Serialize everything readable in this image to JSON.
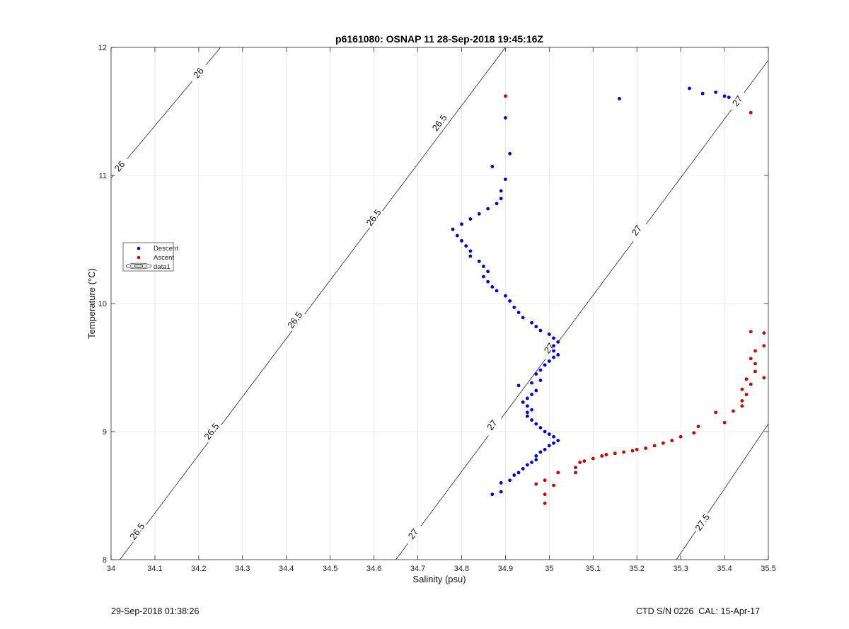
{
  "chart_data": {
    "type": "scatter",
    "title": "p6161080: OSNAP 11 28-Sep-2018 19:45:16Z",
    "xlabel": "Salinity (psu)",
    "ylabel": "Temperature (°C)",
    "xlim": [
      34,
      35.5
    ],
    "ylim": [
      8,
      12
    ],
    "xticks": [
      34,
      34.1,
      34.2,
      34.3,
      34.4,
      34.5,
      34.6,
      34.7,
      34.8,
      34.9,
      35,
      35.1,
      35.2,
      35.3,
      35.4,
      35.5
    ],
    "xtick_labels": [
      "34",
      "34.1",
      "34.2",
      "34.3",
      "34.4",
      "34.5",
      "34.6",
      "34.7",
      "34.8",
      "34.9",
      "35",
      "35.1",
      "35.2",
      "35.3",
      "35.4",
      "35.5"
    ],
    "yticks": [
      8,
      9,
      10,
      11,
      12
    ],
    "ytick_labels": [
      "8",
      "9",
      "10",
      "11",
      "12"
    ],
    "grid": true,
    "legend": {
      "location": "west",
      "entries": [
        "Descent",
        "Ascent",
        "data1"
      ]
    },
    "series": [
      {
        "name": "Descent",
        "color": "#0000cc",
        "points": [
          [
            34.87,
            8.51
          ],
          [
            34.89,
            8.53
          ],
          [
            34.89,
            8.6
          ],
          [
            34.91,
            8.62
          ],
          [
            34.92,
            8.66
          ],
          [
            34.93,
            8.68
          ],
          [
            34.94,
            8.71
          ],
          [
            34.95,
            8.74
          ],
          [
            34.96,
            8.76
          ],
          [
            34.97,
            8.78
          ],
          [
            34.97,
            8.81
          ],
          [
            34.98,
            8.84
          ],
          [
            34.99,
            8.86
          ],
          [
            35,
            8.89
          ],
          [
            35.01,
            8.91
          ],
          [
            35.02,
            8.93
          ],
          [
            35.01,
            8.96
          ],
          [
            35,
            8.98
          ],
          [
            34.99,
            9.0
          ],
          [
            34.98,
            9.03
          ],
          [
            34.97,
            9.06
          ],
          [
            34.96,
            9.09
          ],
          [
            34.95,
            9.12
          ],
          [
            34.95,
            9.15
          ],
          [
            34.96,
            9.17
          ],
          [
            34.95,
            9.2
          ],
          [
            34.94,
            9.23
          ],
          [
            34.95,
            9.26
          ],
          [
            34.96,
            9.29
          ],
          [
            34.97,
            9.32
          ],
          [
            34.93,
            9.36
          ],
          [
            34.96,
            9.38
          ],
          [
            34.98,
            9.4
          ],
          [
            34.97,
            9.45
          ],
          [
            34.98,
            9.48
          ],
          [
            34.99,
            9.52
          ],
          [
            35.0,
            9.55
          ],
          [
            35.01,
            9.58
          ],
          [
            35.02,
            9.6
          ],
          [
            35.01,
            9.63
          ],
          [
            35.01,
            9.67
          ],
          [
            35.02,
            9.7
          ],
          [
            35.01,
            9.73
          ],
          [
            35.0,
            9.76
          ],
          [
            34.98,
            9.79
          ],
          [
            34.97,
            9.82
          ],
          [
            34.96,
            9.85
          ],
          [
            34.94,
            9.89
          ],
          [
            34.93,
            9.93
          ],
          [
            34.92,
            9.97
          ],
          [
            34.91,
            10.02
          ],
          [
            34.9,
            10.06
          ],
          [
            34.88,
            10.1
          ],
          [
            34.87,
            10.13
          ],
          [
            34.86,
            10.17
          ],
          [
            34.85,
            10.21
          ],
          [
            34.86,
            10.25
          ],
          [
            34.85,
            10.29
          ],
          [
            34.84,
            10.33
          ],
          [
            34.82,
            10.37
          ],
          [
            34.82,
            10.41
          ],
          [
            34.81,
            10.45
          ],
          [
            34.8,
            10.49
          ],
          [
            34.79,
            10.53
          ],
          [
            34.78,
            10.58
          ],
          [
            34.8,
            10.62
          ],
          [
            34.82,
            10.66
          ],
          [
            34.84,
            10.7
          ],
          [
            34.86,
            10.74
          ],
          [
            34.88,
            10.78
          ],
          [
            34.89,
            10.82
          ],
          [
            34.89,
            10.88
          ],
          [
            34.9,
            10.97
          ],
          [
            34.87,
            11.07
          ],
          [
            34.91,
            11.17
          ],
          [
            34.9,
            11.45
          ],
          [
            35.16,
            11.6
          ],
          [
            35.32,
            11.68
          ],
          [
            35.35,
            11.64
          ],
          [
            35.38,
            11.65
          ],
          [
            35.4,
            11.62
          ],
          [
            35.41,
            11.61
          ]
        ]
      },
      {
        "name": "Ascent",
        "color": "#cc0000",
        "points": [
          [
            34.99,
            8.44
          ],
          [
            34.99,
            8.51
          ],
          [
            35.01,
            8.58
          ],
          [
            34.97,
            8.59
          ],
          [
            34.99,
            8.62
          ],
          [
            35.02,
            8.68
          ],
          [
            35.06,
            8.68
          ],
          [
            35.06,
            8.72
          ],
          [
            35.07,
            8.76
          ],
          [
            35.08,
            8.77
          ],
          [
            35.1,
            8.79
          ],
          [
            35.12,
            8.81
          ],
          [
            35.13,
            8.82
          ],
          [
            35.15,
            8.83
          ],
          [
            35.17,
            8.84
          ],
          [
            35.19,
            8.85
          ],
          [
            35.2,
            8.86
          ],
          [
            35.22,
            8.87
          ],
          [
            35.24,
            8.89
          ],
          [
            35.26,
            8.91
          ],
          [
            35.28,
            8.93
          ],
          [
            35.3,
            8.96
          ],
          [
            35.33,
            8.99
          ],
          [
            35.34,
            9.04
          ],
          [
            35.4,
            9.07
          ],
          [
            35.38,
            9.15
          ],
          [
            35.42,
            9.16
          ],
          [
            35.44,
            9.2
          ],
          [
            35.44,
            9.24
          ],
          [
            35.45,
            9.29
          ],
          [
            35.44,
            9.33
          ],
          [
            35.46,
            9.37
          ],
          [
            35.45,
            9.41
          ],
          [
            35.49,
            9.42
          ],
          [
            35.47,
            9.47
          ],
          [
            35.47,
            9.53
          ],
          [
            35.46,
            9.57
          ],
          [
            35.47,
            9.63
          ],
          [
            35.49,
            9.67
          ],
          [
            35.46,
            9.78
          ],
          [
            35.49,
            9.77
          ],
          [
            35.46,
            11.49
          ],
          [
            34.9,
            11.62
          ]
        ]
      }
    ],
    "contours": [
      {
        "label": "26",
        "line": [
          [
            34,
            10.98
          ],
          [
            34.25,
            12.0
          ]
        ],
        "labels_at": [
          [
            34.02,
            11.07
          ],
          [
            34.2,
            11.8
          ]
        ]
      },
      {
        "label": "26.5",
        "line": [
          [
            34.02,
            8.0
          ],
          [
            34.9,
            12.0
          ]
        ],
        "labels_at": [
          [
            34.06,
            8.22
          ],
          [
            34.23,
            9.0
          ],
          [
            34.42,
            9.87
          ],
          [
            34.6,
            10.67
          ],
          [
            34.75,
            11.41
          ]
        ]
      },
      {
        "label": "27",
        "line": [
          [
            34.65,
            8.0
          ],
          [
            35.5,
            11.9
          ]
        ],
        "labels_at": [
          [
            34.69,
            8.2
          ],
          [
            34.87,
            9.05
          ],
          [
            35.0,
            9.65
          ],
          [
            35.2,
            10.57
          ],
          [
            35.43,
            11.58
          ]
        ]
      },
      {
        "label": "27.5",
        "line": [
          [
            35.29,
            8.0
          ],
          [
            35.5,
            9.06
          ]
        ],
        "labels_at": [
          [
            35.35,
            8.29
          ]
        ]
      }
    ]
  },
  "footer": {
    "left": "29-Sep-2018 01:38:26",
    "right": "CTD S/N 0226  CAL: 15-Apr-17"
  }
}
